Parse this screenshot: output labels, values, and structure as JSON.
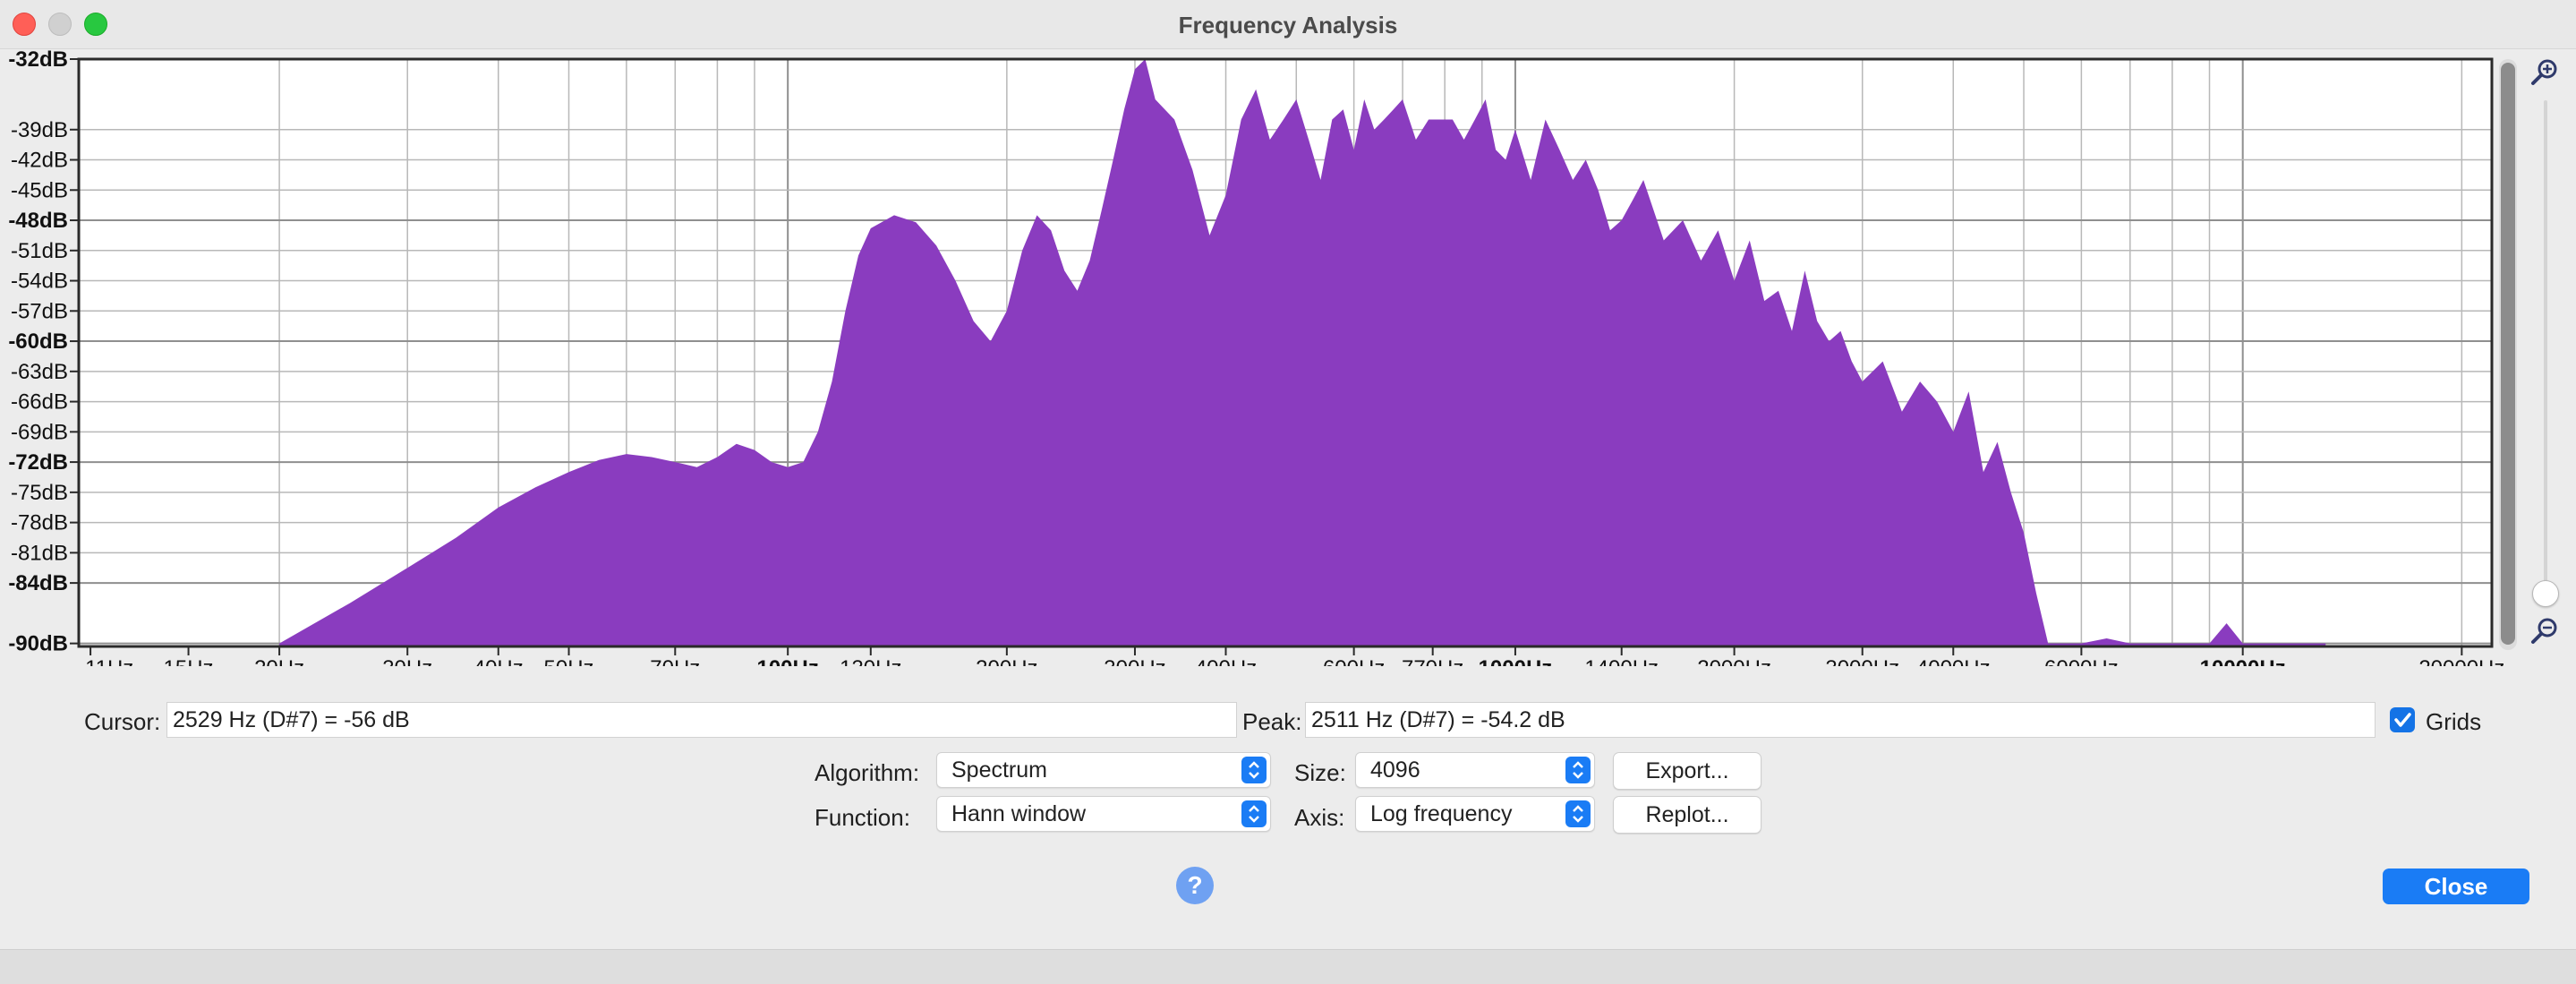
{
  "window": {
    "title": "Frequency Analysis"
  },
  "plot": {
    "y_ticks": [
      "-32dB",
      "-39dB",
      "-42dB",
      "-45dB",
      "-48dB",
      "-51dB",
      "-54dB",
      "-57dB",
      "-60dB",
      "-63dB",
      "-66dB",
      "-69dB",
      "-72dB",
      "-75dB",
      "-78dB",
      "-81dB",
      "-84dB",
      "-90dB"
    ],
    "y_ticks_bold": [
      "-32dB",
      "-48dB",
      "-60dB",
      "-72dB",
      "-84dB",
      "-90dB"
    ],
    "x_ticks": [
      {
        "label": "11Hz",
        "hz": 11
      },
      {
        "label": "15Hz",
        "hz": 15
      },
      {
        "label": "20Hz",
        "hz": 20
      },
      {
        "label": "30Hz",
        "hz": 30
      },
      {
        "label": "40Hz",
        "hz": 40
      },
      {
        "label": "50Hz",
        "hz": 50
      },
      {
        "label": "70Hz",
        "hz": 70
      },
      {
        "label": "100Hz",
        "hz": 100,
        "bold": true
      },
      {
        "label": "130Hz",
        "hz": 130
      },
      {
        "label": "200Hz",
        "hz": 200
      },
      {
        "label": "300Hz",
        "hz": 300
      },
      {
        "label": "400Hz",
        "hz": 400
      },
      {
        "label": "600Hz",
        "hz": 600
      },
      {
        "label": "770Hz",
        "hz": 770
      },
      {
        "label": "1000Hz",
        "hz": 1000,
        "bold": true
      },
      {
        "label": "1400Hz",
        "hz": 1400
      },
      {
        "label": "2000Hz",
        "hz": 2000
      },
      {
        "label": "3000Hz",
        "hz": 3000
      },
      {
        "label": "4000Hz",
        "hz": 4000
      },
      {
        "label": "6000Hz",
        "hz": 6000
      },
      {
        "label": "10000Hz",
        "hz": 10000,
        "bold": true
      },
      {
        "label": "20000Hz",
        "hz": 20000
      }
    ],
    "fill_color": "#8a3cbf",
    "grid_color": "#b8b8b8",
    "spectrum": {
      "freq_hz": [
        20,
        25,
        30,
        35,
        40,
        45,
        50,
        55,
        60,
        65,
        70,
        75,
        80,
        85,
        90,
        95,
        100,
        105,
        110,
        115,
        120,
        125,
        130,
        140,
        150,
        160,
        170,
        180,
        190,
        200,
        210,
        220,
        230,
        240,
        250,
        260,
        270,
        280,
        290,
        300,
        310,
        320,
        340,
        360,
        380,
        400,
        420,
        440,
        460,
        480,
        500,
        520,
        540,
        560,
        580,
        600,
        620,
        640,
        660,
        680,
        700,
        730,
        760,
        790,
        820,
        850,
        880,
        910,
        940,
        970,
        1000,
        1050,
        1100,
        1150,
        1200,
        1250,
        1300,
        1350,
        1400,
        1450,
        1500,
        1600,
        1700,
        1800,
        1900,
        2000,
        2100,
        2200,
        2300,
        2400,
        2500,
        2600,
        2700,
        2800,
        2900,
        3000,
        3200,
        3400,
        3600,
        3800,
        4000,
        4200,
        4400,
        4600,
        4800,
        5000,
        5200,
        5400,
        5600,
        5800,
        6000,
        6500,
        7000,
        7500,
        8000,
        8500,
        9000,
        9500,
        10000,
        10500,
        11000,
        11500,
        12000,
        13000
      ],
      "db": [
        -90,
        -86,
        -82.5,
        -79.5,
        -76.5,
        -74.5,
        -73,
        -71.8,
        -71.2,
        -71.5,
        -72,
        -72.5,
        -71.5,
        -70.2,
        -70.8,
        -72,
        -72.5,
        -72,
        -69,
        -64,
        -57,
        -51.5,
        -48.8,
        -47.5,
        -48.2,
        -50.5,
        -54,
        -58,
        -60,
        -57,
        -51,
        -47.5,
        -49,
        -53,
        -55,
        -52,
        -47,
        -42,
        -37,
        -33,
        -32,
        -36,
        -38,
        -43,
        -49.5,
        -45.5,
        -38,
        -35,
        -40,
        -38,
        -36,
        -40,
        -44,
        -38,
        -37,
        -41,
        -36,
        -39,
        -38,
        -37,
        -36,
        -40,
        -38,
        -38,
        -38,
        -40,
        -38,
        -36,
        -41,
        -42,
        -39,
        -44,
        -38,
        -41,
        -44,
        -42,
        -45,
        -49,
        -48,
        -46,
        -44,
        -50,
        -48,
        -52,
        -49,
        -54,
        -50,
        -56,
        -55,
        -59,
        -53,
        -58,
        -60,
        -59,
        -62,
        -64,
        -62,
        -67,
        -64,
        -66,
        -69,
        -65,
        -73,
        -70,
        -75,
        -79,
        -85,
        -90,
        -90,
        -90,
        -90,
        -89.5,
        -90,
        -90,
        -90,
        -90,
        -90,
        -88,
        -90,
        -90,
        -90,
        -90,
        -90,
        -90
      ]
    }
  },
  "cursor": {
    "label": "Cursor:",
    "value": "2529 Hz (D#7) = -56 dB"
  },
  "peak": {
    "label": "Peak:",
    "value": "2511 Hz (D#7) = -54.2 dB"
  },
  "grids": {
    "label": "Grids",
    "checked": true
  },
  "controls": {
    "algorithm_label": "Algorithm:",
    "algorithm_value": "Spectrum",
    "function_label": "Function:",
    "function_value": "Hann window",
    "size_label": "Size:",
    "size_value": "4096",
    "axis_label": "Axis:",
    "axis_value": "Log frequency",
    "export_label": "Export...",
    "replot_label": "Replot..."
  },
  "help": {
    "symbol": "?"
  },
  "close": {
    "label": "Close"
  }
}
